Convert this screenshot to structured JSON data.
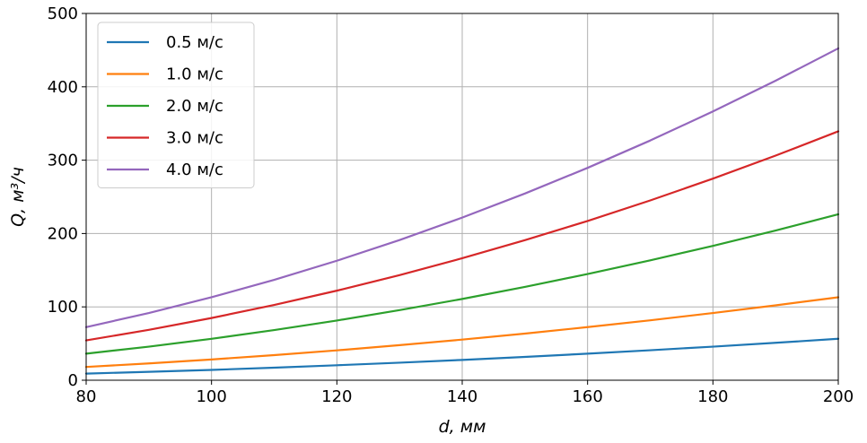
{
  "chart_data": {
    "type": "line",
    "xlabel": "d, мм",
    "ylabel": "Q, м³/ч",
    "xlim": [
      80,
      200
    ],
    "ylim": [
      0,
      500
    ],
    "xticks": [
      "80",
      "100",
      "120",
      "140",
      "160",
      "180",
      "200"
    ],
    "yticks": [
      "0",
      "100",
      "200",
      "300",
      "400",
      "500"
    ],
    "grid": true,
    "legend_position": "top-left",
    "x": [
      80,
      90,
      100,
      110,
      120,
      130,
      140,
      150,
      160,
      170,
      180,
      190,
      200
    ],
    "series": [
      {
        "name": "0.5 м/с",
        "color": "#1f77b4",
        "values": [
          9.0,
          11.5,
          14.1,
          17.1,
          20.4,
          23.9,
          27.7,
          31.8,
          36.2,
          40.9,
          45.8,
          51.0,
          56.5
        ]
      },
      {
        "name": "1.0 м/с",
        "color": "#ff7f0e",
        "values": [
          18.1,
          22.9,
          28.3,
          34.2,
          40.7,
          47.8,
          55.4,
          63.6,
          72.4,
          81.7,
          91.6,
          102.1,
          113.1
        ]
      },
      {
        "name": "2.0 м/с",
        "color": "#2ca02c",
        "values": [
          36.2,
          45.8,
          56.5,
          68.4,
          81.4,
          95.6,
          110.8,
          127.2,
          144.8,
          163.4,
          183.2,
          204.1,
          226.2
        ]
      },
      {
        "name": "3.0 м/с",
        "color": "#d62728",
        "values": [
          54.3,
          68.7,
          84.8,
          102.6,
          122.1,
          143.3,
          166.3,
          190.9,
          217.1,
          245.1,
          274.8,
          306.2,
          339.3
        ]
      },
      {
        "name": "4.0 м/с",
        "color": "#9467bd",
        "values": [
          72.4,
          91.6,
          113.1,
          136.8,
          162.9,
          191.1,
          221.7,
          254.5,
          289.5,
          326.8,
          366.4,
          408.3,
          452.4
        ]
      }
    ]
  }
}
